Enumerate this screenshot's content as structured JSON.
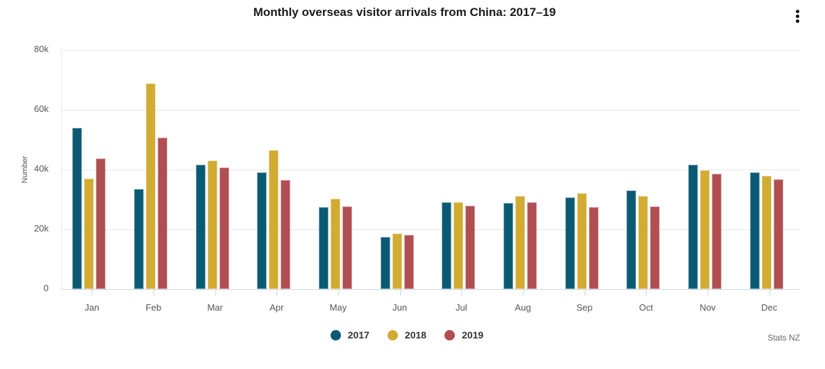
{
  "title": "Monthly overseas visitor arrivals from China: 2017–19",
  "menu_icon": "kebab-menu-icon",
  "source": "Stats NZ",
  "colors": {
    "2017": "#0b5a73",
    "2018": "#d2ab32",
    "2019": "#b04e51"
  },
  "legend": [
    {
      "label": "2017",
      "color": "#0b5a73"
    },
    {
      "label": "2018",
      "color": "#d2ab32"
    },
    {
      "label": "2019",
      "color": "#b04e51"
    }
  ],
  "y_axis": {
    "label": "Number",
    "ticks": [
      "0",
      "20k",
      "40k",
      "60k",
      "80k"
    ]
  },
  "chart_data": {
    "type": "bar",
    "title": "Monthly overseas visitor arrivals from China: 2017–19",
    "xlabel": "",
    "ylabel": "Number",
    "ylim": [
      0,
      80000
    ],
    "grid": true,
    "legend_position": "bottom",
    "categories": [
      "Jan",
      "Feb",
      "Mar",
      "Apr",
      "May",
      "Jun",
      "Jul",
      "Aug",
      "Sep",
      "Oct",
      "Nov",
      "Dec"
    ],
    "series": [
      {
        "name": "2017",
        "color": "#0b5a73",
        "values": [
          54000,
          33500,
          41600,
          39100,
          27400,
          17400,
          29100,
          28800,
          30700,
          33000,
          41600,
          39100
        ]
      },
      {
        "name": "2018",
        "color": "#d2ab32",
        "values": [
          37000,
          68800,
          43000,
          46500,
          30200,
          18600,
          29100,
          31200,
          32100,
          31200,
          39800,
          37900
        ]
      },
      {
        "name": "2019",
        "color": "#b04e51",
        "values": [
          43700,
          50700,
          40700,
          36500,
          27700,
          18100,
          27900,
          29100,
          27400,
          27700,
          38600,
          36700
        ]
      }
    ],
    "source": "Stats NZ"
  }
}
